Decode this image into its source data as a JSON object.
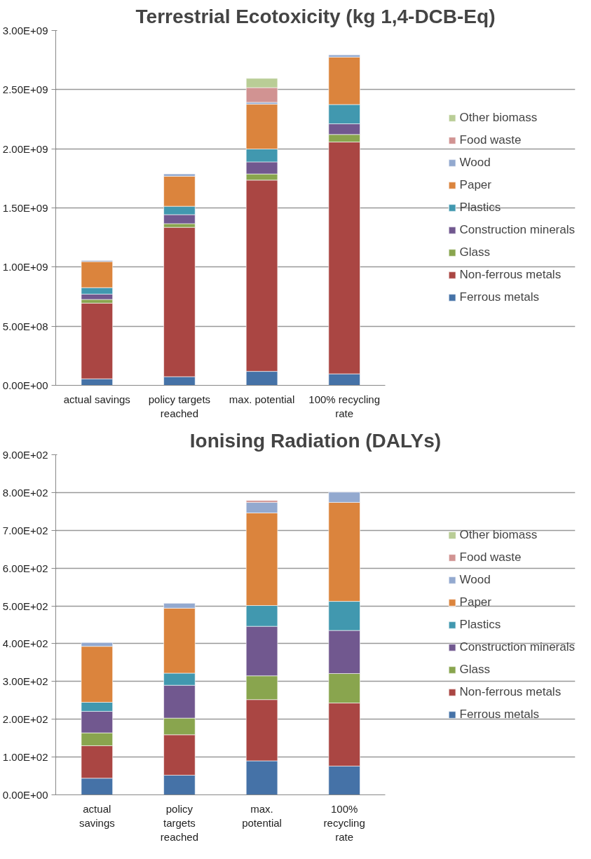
{
  "chart_data": [
    {
      "type": "bar",
      "stacked": true,
      "title": "Terrestrial Ecotoxicity (kg 1,4-DCB-Eq)",
      "categories": [
        "actual savings",
        "policy targets reached",
        "max. potential",
        "100% recycling rate"
      ],
      "series": [
        {
          "name": "Ferrous metals",
          "color": "#4572a7",
          "values": [
            55000000,
            73000000,
            118000000,
            97000000
          ]
        },
        {
          "name": "Non-ferrous metals",
          "color": "#aa4643",
          "values": [
            640000000,
            1263000000,
            1617000000,
            1960000000
          ]
        },
        {
          "name": "Glass",
          "color": "#89a54e",
          "values": [
            31000000,
            31000000,
            52000000,
            64000000
          ]
        },
        {
          "name": "Construction minerals",
          "color": "#71588f",
          "values": [
            45000000,
            76000000,
            102000000,
            90000000
          ]
        },
        {
          "name": "Plastics",
          "color": "#4198af",
          "values": [
            55000000,
            71000000,
            109000000,
            163000000
          ]
        },
        {
          "name": "Paper",
          "color": "#db843d",
          "values": [
            220000000,
            254000000,
            379000000,
            401000000
          ]
        },
        {
          "name": "Wood",
          "color": "#93a9cf",
          "values": [
            10000000,
            19000000,
            16000000,
            19000000
          ]
        },
        {
          "name": "Food waste",
          "color": "#d19392",
          "values": [
            0,
            0,
            124000000,
            0
          ]
        },
        {
          "name": "Other biomass",
          "color": "#b9cd96",
          "values": [
            0,
            0,
            78000000,
            0
          ]
        }
      ],
      "ylim": [
        0,
        3000000000
      ],
      "yticks": [
        {
          "value": 0,
          "label": "0.00E+00"
        },
        {
          "value": 500000000,
          "label": "5.00E+08"
        },
        {
          "value": 1000000000,
          "label": "1.00E+09"
        },
        {
          "value": 1500000000,
          "label": "1.50E+09"
        },
        {
          "value": 2000000000,
          "label": "2.00E+09"
        },
        {
          "value": 2500000000,
          "label": "2.50E+09"
        },
        {
          "value": 3000000000,
          "label": "3.00E+09"
        }
      ],
      "grid": "y",
      "legend": "right"
    },
    {
      "type": "bar",
      "stacked": true,
      "title": "Ionising Radiation (DALYs)",
      "categories": [
        "actual savings",
        "policy targets reached",
        "max. potential",
        "100% recycling rate"
      ],
      "series": [
        {
          "name": "Ferrous metals",
          "color": "#4572a7",
          "values": [
            44,
            52,
            90,
            76
          ]
        },
        {
          "name": "Non-ferrous metals",
          "color": "#aa4643",
          "values": [
            86,
            107,
            162,
            167
          ]
        },
        {
          "name": "Glass",
          "color": "#89a54e",
          "values": [
            34,
            44,
            63,
            78
          ]
        },
        {
          "name": "Construction minerals",
          "color": "#71588f",
          "values": [
            57,
            87,
            131,
            114
          ]
        },
        {
          "name": "Plastics",
          "color": "#4198af",
          "values": [
            24,
            32,
            55,
            77
          ]
        },
        {
          "name": "Paper",
          "color": "#db843d",
          "values": [
            148,
            172,
            245,
            262
          ]
        },
        {
          "name": "Wood",
          "color": "#93a9cf",
          "values": [
            10,
            13,
            28,
            27
          ]
        },
        {
          "name": "Food waste",
          "color": "#d19392",
          "values": [
            0,
            0,
            5,
            0
          ]
        },
        {
          "name": "Other biomass",
          "color": "#b9cd96",
          "values": [
            0,
            0,
            0,
            0
          ]
        }
      ],
      "ylim": [
        0,
        900
      ],
      "yticks": [
        {
          "value": 0,
          "label": "0.00E+00"
        },
        {
          "value": 100,
          "label": "1.00E+02"
        },
        {
          "value": 200,
          "label": "2.00E+02"
        },
        {
          "value": 300,
          "label": "3.00E+02"
        },
        {
          "value": 400,
          "label": "4.00E+02"
        },
        {
          "value": 500,
          "label": "5.00E+02"
        },
        {
          "value": 600,
          "label": "6.00E+02"
        },
        {
          "value": 700,
          "label": "7.00E+02"
        },
        {
          "value": 800,
          "label": "8.00E+02"
        },
        {
          "value": 900,
          "label": "9.00E+02"
        }
      ],
      "grid": "y",
      "legend": "right"
    }
  ]
}
